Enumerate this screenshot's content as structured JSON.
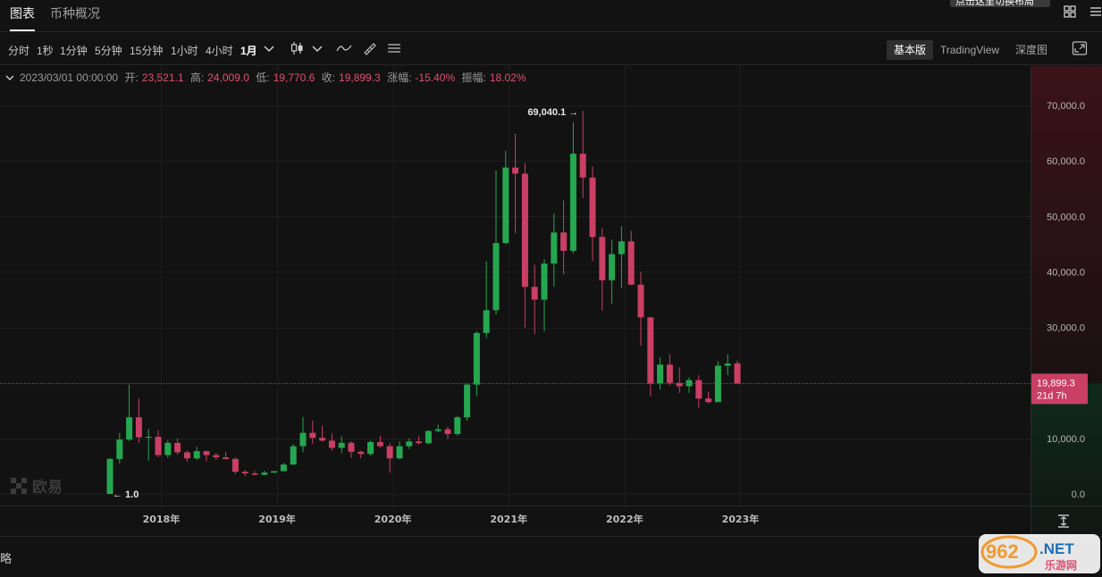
{
  "tabs": [
    {
      "label": "图表",
      "active": true
    },
    {
      "label": "币种概况",
      "active": false
    }
  ],
  "tooltip_text": "点击这里切换布局",
  "timeframes": [
    {
      "label": "分时",
      "active": false
    },
    {
      "label": "1秒",
      "active": false
    },
    {
      "label": "1分钟",
      "active": false
    },
    {
      "label": "5分钟",
      "active": false
    },
    {
      "label": "15分钟",
      "active": false
    },
    {
      "label": "1小时",
      "active": false
    },
    {
      "label": "4小时",
      "active": false
    },
    {
      "label": "1月",
      "active": true
    }
  ],
  "modes": [
    {
      "label": "基本版",
      "active": true
    },
    {
      "label": "TradingView",
      "active": false
    },
    {
      "label": "深度图",
      "active": false
    }
  ],
  "ohlc": {
    "date": "2023/03/01 00:00:00",
    "open_label": "开:",
    "open": "23,521.1",
    "high_label": "高:",
    "high": "24,009.0",
    "low_label": "低:",
    "low": "19,770.6",
    "close_label": "收:",
    "close": "19,899.3",
    "change_label": "涨幅:",
    "change": "-15.40%",
    "amplitude_label": "振幅:",
    "amplitude": "18.02%"
  },
  "watermark": "欧易",
  "bottom_text": "略",
  "colors": {
    "up": "#25a750",
    "down": "#ca3f64",
    "background": "#121212"
  },
  "chart_data": {
    "type": "candlestick",
    "interval": "1 month",
    "y_ticks": [
      "70,000.0",
      "60,000.0",
      "50,000.0",
      "40,000.0",
      "30,000.0",
      "20,000.0",
      "10,000.0",
      "0.0"
    ],
    "x_ticks": [
      "2018年",
      "2019年",
      "2020年",
      "2021年",
      "2022年",
      "2023年"
    ],
    "ylim": [
      0,
      71000
    ],
    "annotations": {
      "max_label": "69,040.1",
      "min_label": "1.0"
    },
    "last_price": {
      "value": 19899.3,
      "label": "19,899.3",
      "countdown": "21d 7h"
    },
    "candles": [
      {
        "t": "2017-10",
        "o": 1,
        "h": 6500,
        "l": 1,
        "c": 6300
      },
      {
        "t": "2017-11",
        "o": 6300,
        "h": 11000,
        "l": 5500,
        "c": 9800
      },
      {
        "t": "2017-12",
        "o": 9800,
        "h": 19700,
        "l": 9500,
        "c": 13800
      },
      {
        "t": "2018-01",
        "o": 13800,
        "h": 17200,
        "l": 9200,
        "c": 10200
      },
      {
        "t": "2018-02",
        "o": 10200,
        "h": 11700,
        "l": 6000,
        "c": 10300
      },
      {
        "t": "2018-03",
        "o": 10300,
        "h": 11500,
        "l": 6600,
        "c": 7000
      },
      {
        "t": "2018-04",
        "o": 7000,
        "h": 9700,
        "l": 6500,
        "c": 9200
      },
      {
        "t": "2018-05",
        "o": 9200,
        "h": 10000,
        "l": 7100,
        "c": 7500
      },
      {
        "t": "2018-06",
        "o": 7500,
        "h": 7800,
        "l": 5800,
        "c": 6400
      },
      {
        "t": "2018-07",
        "o": 6400,
        "h": 8500,
        "l": 6100,
        "c": 7700
      },
      {
        "t": "2018-08",
        "o": 7700,
        "h": 7800,
        "l": 5900,
        "c": 7000
      },
      {
        "t": "2018-09",
        "o": 7000,
        "h": 7400,
        "l": 6100,
        "c": 6600
      },
      {
        "t": "2018-10",
        "o": 6600,
        "h": 7600,
        "l": 6200,
        "c": 6300
      },
      {
        "t": "2018-11",
        "o": 6300,
        "h": 6600,
        "l": 3600,
        "c": 4000
      },
      {
        "t": "2018-12",
        "o": 4000,
        "h": 4300,
        "l": 3200,
        "c": 3700
      },
      {
        "t": "2019-01",
        "o": 3700,
        "h": 4100,
        "l": 3400,
        "c": 3450
      },
      {
        "t": "2019-02",
        "o": 3450,
        "h": 4200,
        "l": 3350,
        "c": 3850
      },
      {
        "t": "2019-03",
        "o": 3850,
        "h": 4150,
        "l": 3750,
        "c": 4100
      },
      {
        "t": "2019-04",
        "o": 4100,
        "h": 5600,
        "l": 4050,
        "c": 5300
      },
      {
        "t": "2019-05",
        "o": 5300,
        "h": 9000,
        "l": 5200,
        "c": 8600
      },
      {
        "t": "2019-06",
        "o": 8600,
        "h": 13900,
        "l": 7500,
        "c": 11000
      },
      {
        "t": "2019-07",
        "o": 11000,
        "h": 13200,
        "l": 9000,
        "c": 10100
      },
      {
        "t": "2019-08",
        "o": 10100,
        "h": 12300,
        "l": 9400,
        "c": 9600
      },
      {
        "t": "2019-09",
        "o": 9600,
        "h": 10900,
        "l": 7800,
        "c": 8300
      },
      {
        "t": "2019-10",
        "o": 8300,
        "h": 10400,
        "l": 7300,
        "c": 9200
      },
      {
        "t": "2019-11",
        "o": 9200,
        "h": 9500,
        "l": 6500,
        "c": 7600
      },
      {
        "t": "2019-12",
        "o": 7600,
        "h": 7800,
        "l": 6400,
        "c": 7200
      },
      {
        "t": "2020-01",
        "o": 7200,
        "h": 9600,
        "l": 6900,
        "c": 9350
      },
      {
        "t": "2020-02",
        "o": 9350,
        "h": 10500,
        "l": 8400,
        "c": 8600
      },
      {
        "t": "2020-03",
        "o": 8600,
        "h": 9200,
        "l": 3800,
        "c": 6400
      },
      {
        "t": "2020-04",
        "o": 6400,
        "h": 9500,
        "l": 6200,
        "c": 8600
      },
      {
        "t": "2020-05",
        "o": 8600,
        "h": 10000,
        "l": 8100,
        "c": 9450
      },
      {
        "t": "2020-06",
        "o": 9450,
        "h": 10400,
        "l": 8900,
        "c": 9150
      },
      {
        "t": "2020-07",
        "o": 9150,
        "h": 11500,
        "l": 8900,
        "c": 11350
      },
      {
        "t": "2020-08",
        "o": 11350,
        "h": 12500,
        "l": 11100,
        "c": 11650
      },
      {
        "t": "2020-09",
        "o": 11650,
        "h": 12100,
        "l": 9900,
        "c": 10800
      },
      {
        "t": "2020-10",
        "o": 10800,
        "h": 14100,
        "l": 10500,
        "c": 13800
      },
      {
        "t": "2020-11",
        "o": 13800,
        "h": 19900,
        "l": 13200,
        "c": 19700
      },
      {
        "t": "2020-12",
        "o": 19700,
        "h": 29300,
        "l": 17600,
        "c": 29000
      },
      {
        "t": "2021-01",
        "o": 29000,
        "h": 41900,
        "l": 28100,
        "c": 33100
      },
      {
        "t": "2021-02",
        "o": 33100,
        "h": 58300,
        "l": 32300,
        "c": 45200
      },
      {
        "t": "2021-03",
        "o": 45200,
        "h": 61800,
        "l": 45000,
        "c": 58800
      },
      {
        "t": "2021-04",
        "o": 58800,
        "h": 64900,
        "l": 47000,
        "c": 57700
      },
      {
        "t": "2021-05",
        "o": 57700,
        "h": 59600,
        "l": 30000,
        "c": 37300
      },
      {
        "t": "2021-06",
        "o": 37300,
        "h": 41300,
        "l": 28800,
        "c": 35000
      },
      {
        "t": "2021-07",
        "o": 35000,
        "h": 42300,
        "l": 29300,
        "c": 41500
      },
      {
        "t": "2021-08",
        "o": 41500,
        "h": 50500,
        "l": 37300,
        "c": 47100
      },
      {
        "t": "2021-09",
        "o": 47100,
        "h": 52900,
        "l": 39600,
        "c": 43800
      },
      {
        "t": "2021-10",
        "o": 43800,
        "h": 67000,
        "l": 43300,
        "c": 61300
      },
      {
        "t": "2021-11",
        "o": 61300,
        "h": 69040.1,
        "l": 53300,
        "c": 57000
      },
      {
        "t": "2021-12",
        "o": 57000,
        "h": 59000,
        "l": 42000,
        "c": 46300
      },
      {
        "t": "2022-01",
        "o": 46300,
        "h": 47900,
        "l": 33000,
        "c": 38500
      },
      {
        "t": "2022-02",
        "o": 38500,
        "h": 45800,
        "l": 34300,
        "c": 43200
      },
      {
        "t": "2022-03",
        "o": 43200,
        "h": 48200,
        "l": 37100,
        "c": 45500
      },
      {
        "t": "2022-04",
        "o": 45500,
        "h": 47400,
        "l": 37600,
        "c": 37700
      },
      {
        "t": "2022-05",
        "o": 37700,
        "h": 40000,
        "l": 26700,
        "c": 31800
      },
      {
        "t": "2022-06",
        "o": 31800,
        "h": 31900,
        "l": 17600,
        "c": 19900
      },
      {
        "t": "2022-07",
        "o": 19900,
        "h": 24600,
        "l": 18800,
        "c": 23300
      },
      {
        "t": "2022-08",
        "o": 23300,
        "h": 25200,
        "l": 19600,
        "c": 20000
      },
      {
        "t": "2022-09",
        "o": 20000,
        "h": 22800,
        "l": 18200,
        "c": 19400
      },
      {
        "t": "2022-10",
        "o": 19400,
        "h": 21000,
        "l": 18200,
        "c": 20500
      },
      {
        "t": "2022-11",
        "o": 20500,
        "h": 21400,
        "l": 15500,
        "c": 17200
      },
      {
        "t": "2022-12",
        "o": 17200,
        "h": 18400,
        "l": 16300,
        "c": 16550
      },
      {
        "t": "2023-01",
        "o": 16550,
        "h": 23900,
        "l": 16500,
        "c": 23100
      },
      {
        "t": "2023-02",
        "o": 23100,
        "h": 25200,
        "l": 21400,
        "c": 23500
      },
      {
        "t": "2023-03",
        "o": 23521.1,
        "h": 24009.0,
        "l": 19770.6,
        "c": 19899.3
      }
    ]
  }
}
